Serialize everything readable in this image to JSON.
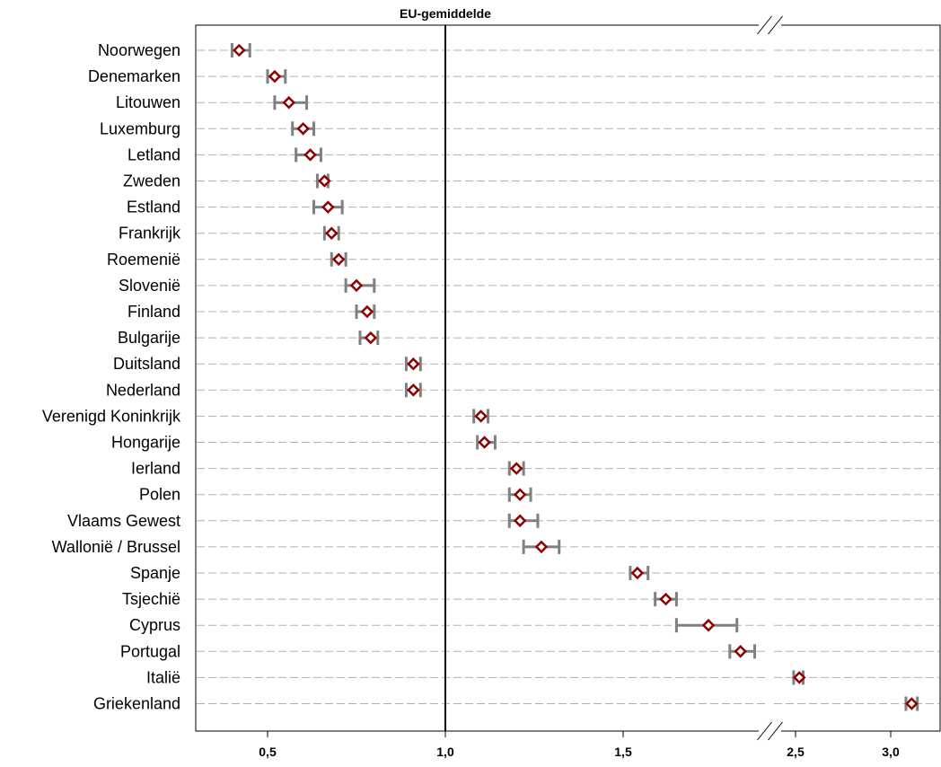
{
  "chart_data": {
    "type": "dot-errorbar",
    "title": "",
    "xlabel": "",
    "ylabel": "",
    "reference_line": {
      "label": "EU-gemiddelde",
      "value": 1.0
    },
    "axis_break": {
      "from": 2.05,
      "to": 2.4
    },
    "xlim": [
      0.35,
      3.15
    ],
    "x_ticks": [
      {
        "value": 0.5,
        "label": "0,5"
      },
      {
        "value": 1.0,
        "label": "1,0"
      },
      {
        "value": 1.5,
        "label": "1,5"
      },
      {
        "value": 2.5,
        "label": "2,5"
      },
      {
        "value": 3.0,
        "label": "3,0"
      }
    ],
    "grid": "dashed horizontal",
    "colors": {
      "marker": "#8b0000",
      "errorbar": "#808080",
      "grid": "#b0b0b0",
      "reference": "#000000"
    },
    "rows": [
      {
        "label": "Noorwegen",
        "value": 0.42,
        "low": 0.4,
        "high": 0.45
      },
      {
        "label": "Denemarken",
        "value": 0.52,
        "low": 0.5,
        "high": 0.55
      },
      {
        "label": "Litouwen",
        "value": 0.56,
        "low": 0.52,
        "high": 0.61
      },
      {
        "label": "Luxemburg",
        "value": 0.6,
        "low": 0.57,
        "high": 0.63
      },
      {
        "label": "Letland",
        "value": 0.62,
        "low": 0.58,
        "high": 0.65
      },
      {
        "label": "Zweden",
        "value": 0.66,
        "low": 0.64,
        "high": 0.67
      },
      {
        "label": "Estland",
        "value": 0.67,
        "low": 0.63,
        "high": 0.71
      },
      {
        "label": "Frankrijk",
        "value": 0.68,
        "low": 0.66,
        "high": 0.7
      },
      {
        "label": "Roemenië",
        "value": 0.7,
        "low": 0.68,
        "high": 0.72
      },
      {
        "label": "Slovenië",
        "value": 0.75,
        "low": 0.72,
        "high": 0.8
      },
      {
        "label": "Finland",
        "value": 0.78,
        "low": 0.75,
        "high": 0.8
      },
      {
        "label": "Bulgarije",
        "value": 0.79,
        "low": 0.76,
        "high": 0.81
      },
      {
        "label": "Duitsland",
        "value": 0.91,
        "low": 0.89,
        "high": 0.93
      },
      {
        "label": "Nederland",
        "value": 0.91,
        "low": 0.89,
        "high": 0.93
      },
      {
        "label": "Verenigd Koninkrijk",
        "value": 1.1,
        "low": 1.08,
        "high": 1.12
      },
      {
        "label": "Hongarije",
        "value": 1.11,
        "low": 1.09,
        "high": 1.14
      },
      {
        "label": "Ierland",
        "value": 1.2,
        "low": 1.18,
        "high": 1.22
      },
      {
        "label": "Polen",
        "value": 1.21,
        "low": 1.18,
        "high": 1.24
      },
      {
        "label": "Vlaams Gewest",
        "value": 1.21,
        "low": 1.18,
        "high": 1.26
      },
      {
        "label": "Wallonië / Brussel",
        "value": 1.27,
        "low": 1.22,
        "high": 1.32
      },
      {
        "label": "Spanje",
        "value": 1.54,
        "low": 1.52,
        "high": 1.57
      },
      {
        "label": "Tsjechië",
        "value": 1.62,
        "low": 1.59,
        "high": 1.65
      },
      {
        "label": "Cyprus",
        "value": 1.74,
        "low": 1.65,
        "high": 1.82
      },
      {
        "label": "Portugal",
        "value": 1.83,
        "low": 1.8,
        "high": 1.87
      },
      {
        "label": "Italië",
        "value": 2.52,
        "low": 2.49,
        "high": 2.54
      },
      {
        "label": "Griekenland",
        "value": 3.11,
        "low": 3.08,
        "high": 3.14
      }
    ]
  }
}
